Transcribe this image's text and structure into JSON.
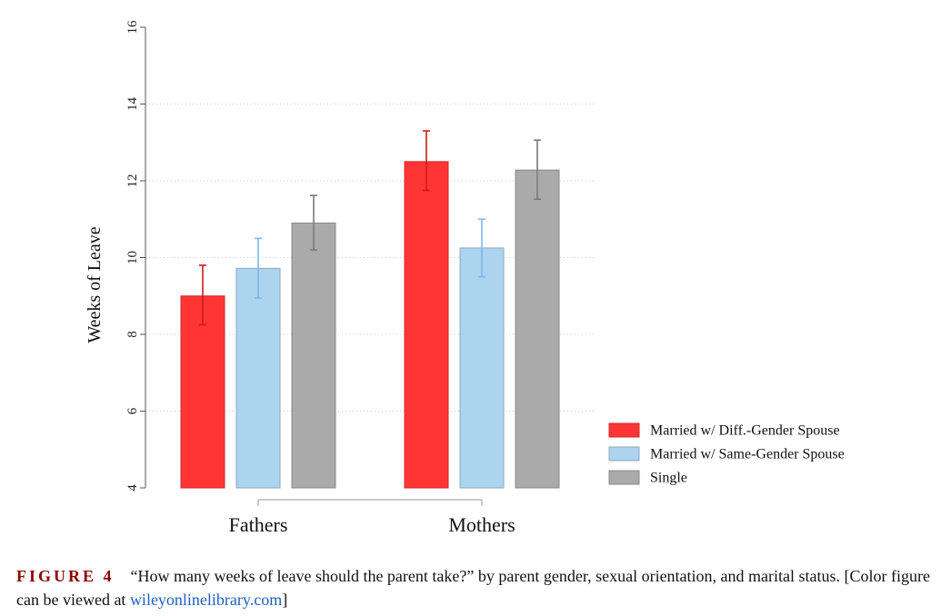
{
  "chart_data": {
    "type": "bar",
    "title": "",
    "xlabel": "",
    "ylabel": "Weeks of Leave",
    "ylim": [
      4,
      16
    ],
    "yticks": [
      4,
      6,
      8,
      10,
      12,
      14,
      16
    ],
    "categories": [
      "Fathers",
      "Mothers"
    ],
    "series": [
      {
        "name": "Married w/ Diff.-Gender Spouse",
        "color": "#ff3535",
        "values": [
          9.0,
          12.5
        ],
        "ci_low": [
          8.25,
          11.75
        ],
        "ci_high": [
          9.8,
          13.3
        ]
      },
      {
        "name": "Married w/ Same-Gender Spouse",
        "color": "#acd4ef",
        "values": [
          9.72,
          10.25
        ],
        "ci_low": [
          8.95,
          9.5
        ],
        "ci_high": [
          10.5,
          11.0
        ]
      },
      {
        "name": "Single",
        "color": "#aaaaaa",
        "values": [
          10.9,
          12.28
        ],
        "ci_low": [
          10.2,
          11.52
        ],
        "ci_high": [
          11.62,
          13.06
        ]
      }
    ],
    "grid": true,
    "legend_position": "bottom-right"
  },
  "caption": {
    "label": "FIGURE 4",
    "text": "“How many weeks of leave should the parent take?” by parent gender, sexual orientation, and marital status. [Color figure can be viewed at ",
    "link": "wileyonlinelibrary.com",
    "end": "]"
  }
}
